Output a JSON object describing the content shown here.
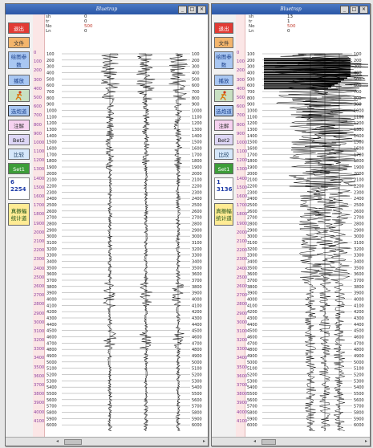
{
  "windows": [
    {
      "title": "Bluetrap",
      "buttons": [
        "退出",
        "文件",
        "绘图参数",
        "播放",
        "",
        "选炮道",
        "注解",
        "Bet2",
        "比较",
        "Set1"
      ],
      "counter": [
        "6",
        "2254"
      ],
      "stats_button": "真振幅统计道",
      "header": [
        {
          "label": "sh",
          "value": "0"
        },
        {
          "label": "tr",
          "value": "0"
        },
        {
          "label": "No",
          "value": "500"
        },
        {
          "label": "Ln",
          "value": "0"
        }
      ],
      "left_times": [
        "0",
        "100",
        "200",
        "300",
        "400",
        "500",
        "600",
        "700",
        "800",
        "900",
        "1000",
        "1100",
        "1200",
        "1300",
        "1400",
        "1500",
        "1600",
        "1700",
        "1800",
        "1900",
        "2000",
        "2100",
        "2200",
        "2300",
        "2400",
        "2500",
        "2600",
        "2700",
        "2800",
        "2900",
        "3000",
        "3100",
        "3200",
        "3300",
        "3400",
        "3500",
        "3600",
        "3700",
        "3800",
        "3900",
        "4000",
        "4100"
      ],
      "time_labels": [
        "100",
        "200",
        "300",
        "400",
        "500",
        "600",
        "700",
        "800",
        "900",
        "1000",
        "1100",
        "1200",
        "1300",
        "1400",
        "1500",
        "1600",
        "1700",
        "1800",
        "1900",
        "2000",
        "2100",
        "2200",
        "2300",
        "2400",
        "2500",
        "2600",
        "2700",
        "2800",
        "2900",
        "3000",
        "3100",
        "3200",
        "3300",
        "3400",
        "3500",
        "3600",
        "3700",
        "3800",
        "3900",
        "4000",
        "4100",
        "4200",
        "4300",
        "4400",
        "4500",
        "4600",
        "4700",
        "4800",
        "4900",
        "5000",
        "5100",
        "5200",
        "5300",
        "5400",
        "5500",
        "5600",
        "5700",
        "5800",
        "5900",
        "6000"
      ],
      "right_time_labels": [
        "100",
        "200",
        "300",
        "400",
        "500",
        "600",
        "700",
        "800",
        "900",
        "1000",
        "1100",
        "1200",
        "1300",
        "1400",
        "1500",
        "1600",
        "1700",
        "1800",
        "1900",
        "2000",
        "2100",
        "2200",
        "2300",
        "2400",
        "2500",
        "2600",
        "2700",
        "2800",
        "2900",
        "3000",
        "3100",
        "3200",
        "3300",
        "3400",
        "3500",
        "3600",
        "3700",
        "3800",
        "3900",
        "4000",
        "4100",
        "4200",
        "4300",
        "4400",
        "4500",
        "4600",
        "4700",
        "4800",
        "4900",
        "5000",
        "5100",
        "5200",
        "5300",
        "5400",
        "5500",
        "5600",
        "5700",
        "5800",
        "5900",
        "6000"
      ]
    },
    {
      "title": "Bluetrap",
      "buttons": [
        "退出",
        "文件",
        "绘图参数",
        "播放",
        "",
        "选炮道",
        "注解",
        "Bet2",
        "比较",
        "Set1"
      ],
      "counter": [
        "1",
        "3136"
      ],
      "stats_button": "真振幅统计道",
      "header": [
        {
          "label": "sh",
          "value": "13"
        },
        {
          "label": "tr",
          "value": "1"
        },
        {
          "label": "No",
          "value": "500"
        },
        {
          "label": "Ln",
          "value": "0"
        }
      ],
      "left_times": [
        "0",
        "100",
        "200",
        "300",
        "400",
        "500",
        "600",
        "700",
        "800",
        "900",
        "1000",
        "1100",
        "1200",
        "1300",
        "1400",
        "1500",
        "1600",
        "1700",
        "1800",
        "1900",
        "2000",
        "2100",
        "2200",
        "2300",
        "2400",
        "2500",
        "2600",
        "2700",
        "2800",
        "2900",
        "3000",
        "3100",
        "3200",
        "3300",
        "3400",
        "3500",
        "3600",
        "3700",
        "3800",
        "3900",
        "4000",
        "4100"
      ],
      "time_labels": [
        "100",
        "200",
        "300",
        "400",
        "500",
        "600",
        "700",
        "800",
        "900",
        "1000",
        "1100",
        "1200",
        "1300",
        "1400",
        "1500",
        "1600",
        "1700",
        "1800",
        "1900",
        "2000",
        "2100",
        "2200",
        "2300",
        "2400",
        "2500",
        "2600",
        "2700",
        "2800",
        "2900",
        "3000",
        "3100",
        "3200",
        "3300",
        "3400",
        "3500",
        "3600",
        "3700",
        "3800",
        "3900",
        "4000",
        "4100",
        "4200",
        "4300",
        "4400",
        "4500",
        "4600",
        "4700",
        "4800",
        "4900",
        "5000",
        "5100",
        "5200",
        "5300",
        "5400",
        "5500",
        "5600",
        "5700",
        "5800",
        "5900",
        "6000"
      ],
      "right_time_labels": [
        "100",
        "200",
        "300",
        "400",
        "500",
        "600",
        "700",
        "800",
        "900",
        "1000",
        "1100",
        "1200",
        "1300",
        "1400",
        "1500",
        "1600",
        "1700",
        "1800",
        "1900",
        "2000",
        "2100",
        "2200",
        "2300",
        "2400",
        "2500",
        "2600",
        "2700",
        "2800",
        "2900",
        "3000",
        "3100",
        "3200",
        "3300",
        "3400",
        "3500",
        "3600",
        "3700",
        "3800",
        "3900",
        "4000",
        "4100",
        "4200",
        "4300",
        "4400",
        "4500",
        "4600",
        "4700",
        "4800",
        "4900",
        "5000",
        "5100",
        "5200",
        "5300",
        "5400",
        "5500",
        "5600",
        "5700",
        "5800",
        "5900",
        "6000"
      ]
    }
  ],
  "icons": {
    "play": "play-icon",
    "runner": "runner-icon",
    "window_controls": [
      "minimize-icon",
      "maximize-icon",
      "close-icon"
    ]
  },
  "colors": {
    "title_bar": "#2a56a6",
    "exit": "#e23b34",
    "file": "#f3b56c",
    "set": "#3d9d39",
    "time_label": "#8a3ca0",
    "header_value": "#c0392b"
  }
}
